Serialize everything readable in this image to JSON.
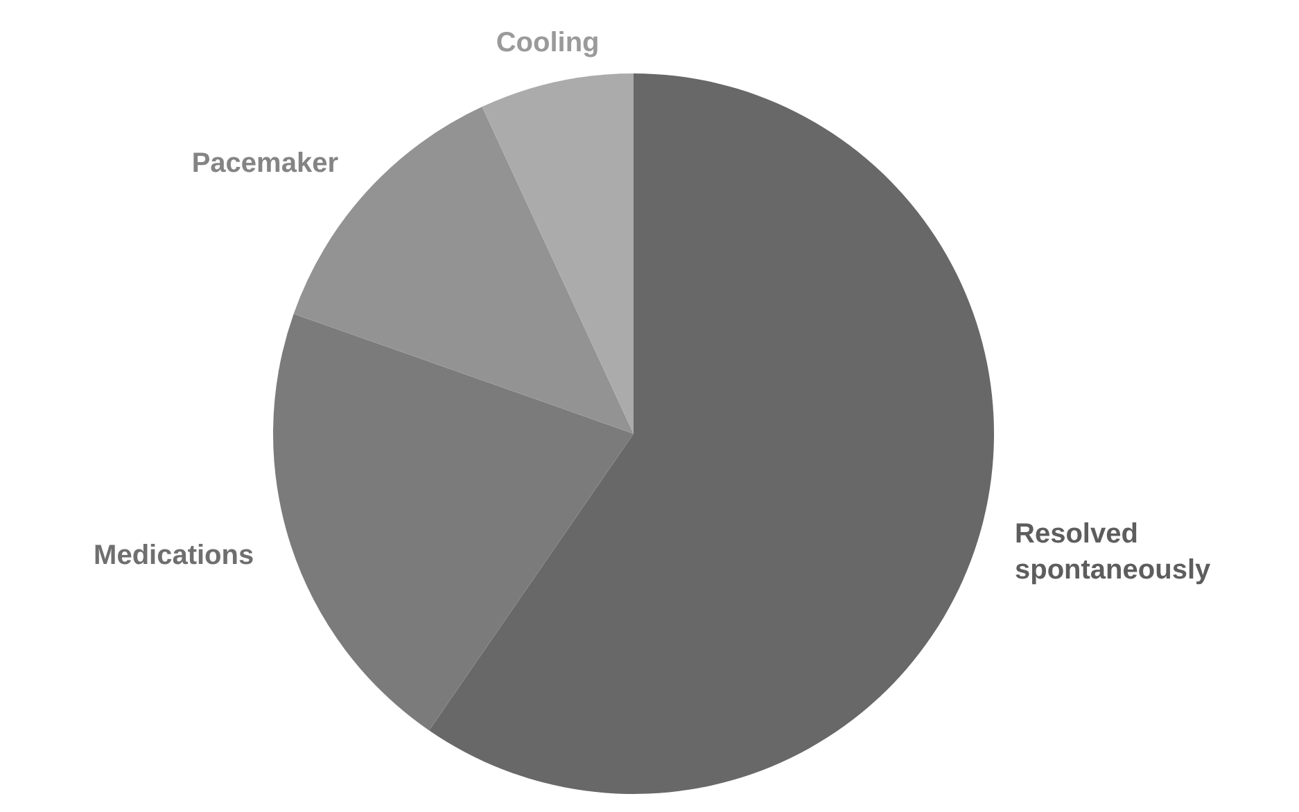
{
  "chart_data": {
    "type": "pie",
    "categories": [
      "Resolved spontaneously",
      "Medications",
      "Pacemaker",
      "Cooling"
    ],
    "values": [
      59.6,
      20.8,
      12.7,
      6.9
    ],
    "colors": [
      "#686868",
      "#7b7b7b",
      "#939393",
      "#ababab"
    ]
  }
}
